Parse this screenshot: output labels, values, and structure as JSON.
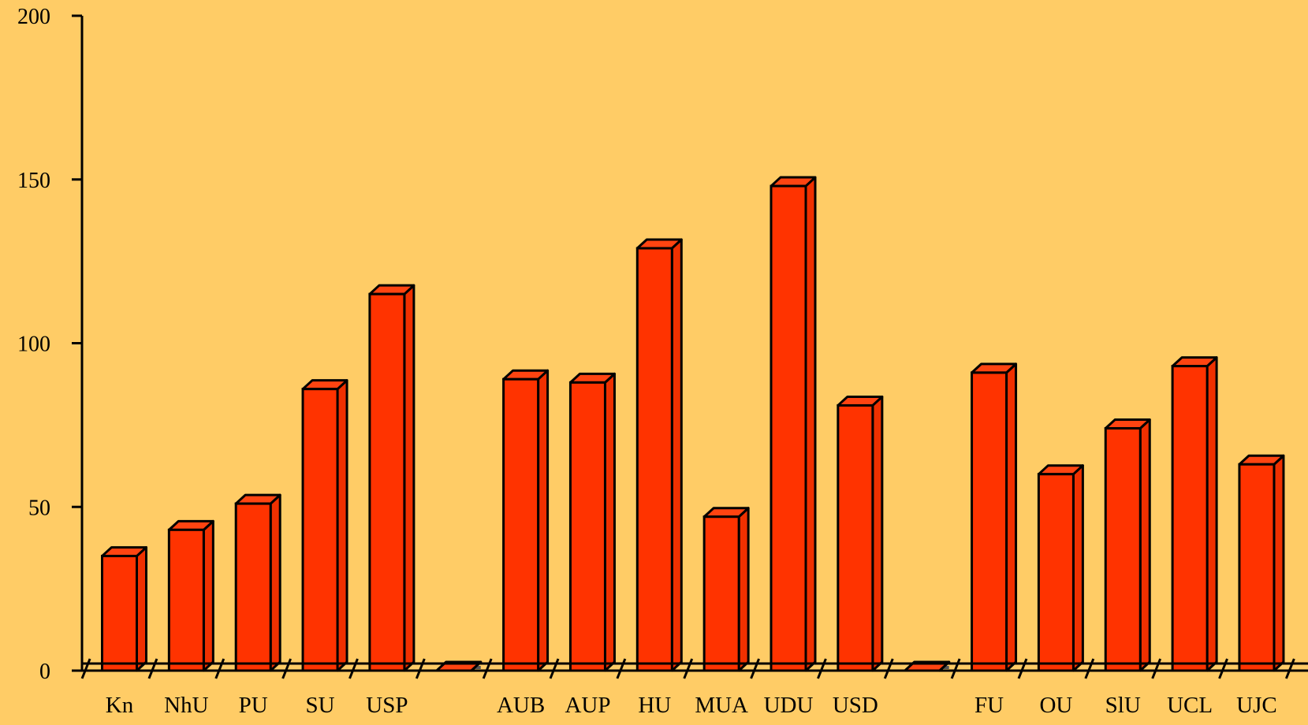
{
  "chart_data": {
    "type": "bar",
    "title": "",
    "xlabel": "",
    "ylabel": "",
    "ylim": [
      0,
      200
    ],
    "yticks": [
      0,
      50,
      100,
      150,
      200
    ],
    "grid": false,
    "legend": "none",
    "colors": {
      "background": "#FFCC66",
      "bar_front": "#FF3300",
      "bar_top": "#FF4411",
      "bar_side": "#F03000",
      "shadow": "#555555",
      "outline": "#000000"
    },
    "categories": [
      "Kn",
      "NhU",
      "PU",
      "SU",
      "USP",
      "",
      "AUB",
      "AUP",
      "HU",
      "MUA",
      "UDU",
      "USD",
      "",
      "FU",
      "OU",
      "SlU",
      "UCL",
      "UJC"
    ],
    "values": [
      35,
      43,
      51,
      86,
      115,
      0,
      89,
      88,
      129,
      47,
      148,
      81,
      0,
      91,
      60,
      74,
      93,
      63
    ]
  }
}
